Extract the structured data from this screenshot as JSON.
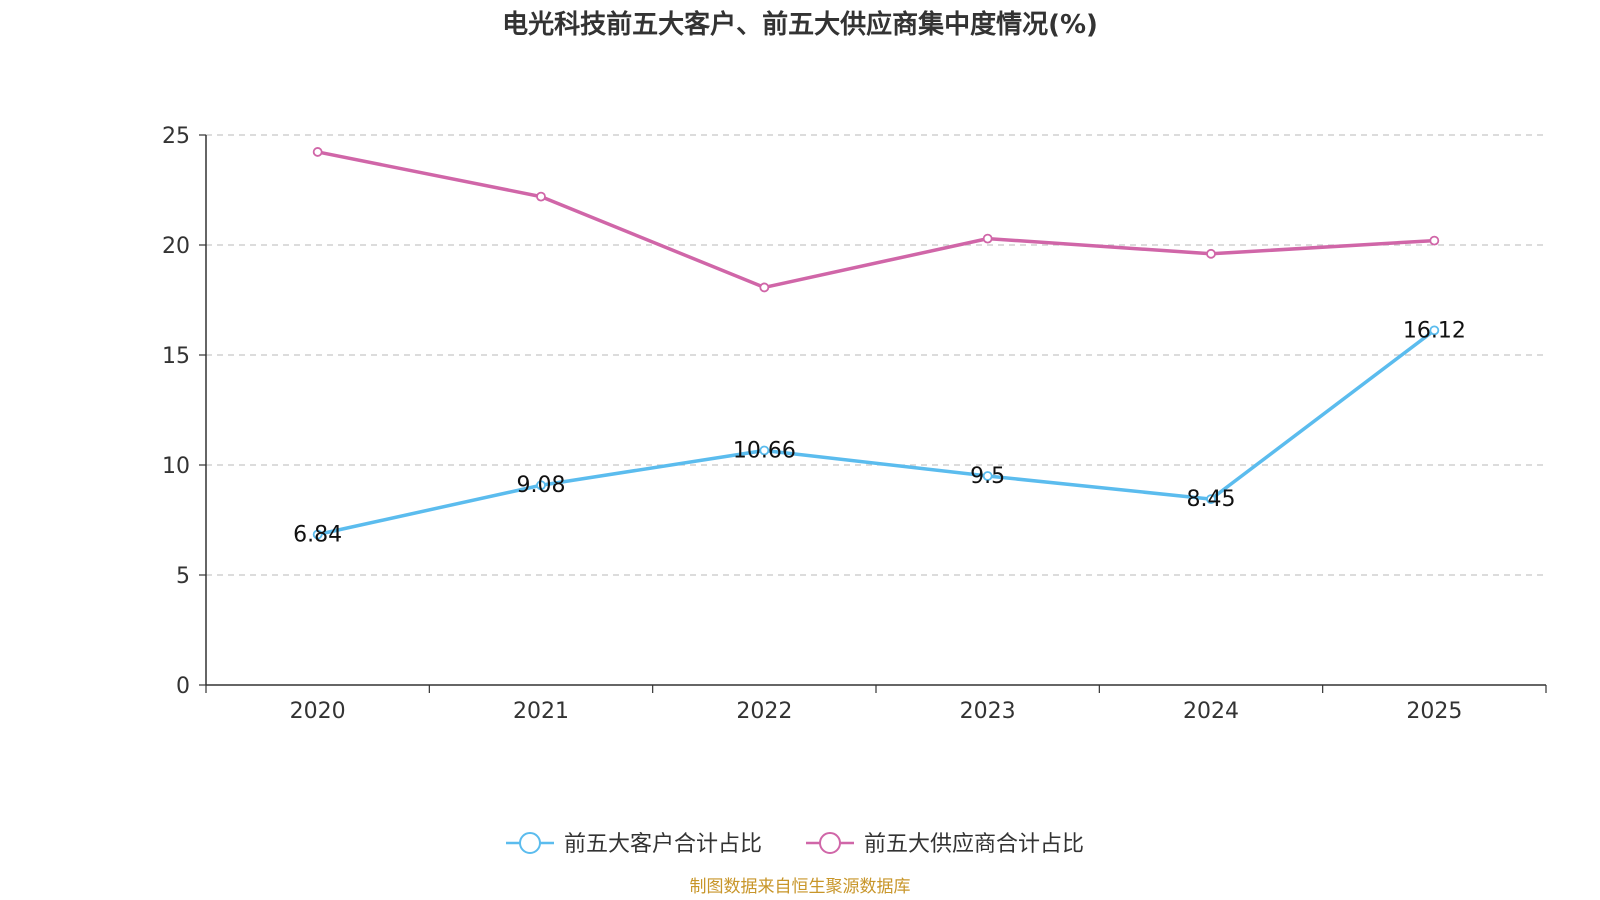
{
  "chart_data": {
    "type": "line",
    "title": "电光科技前五大客户、前五大供应商集中度情况(%)",
    "categories": [
      "2020",
      "2021",
      "2022",
      "2023",
      "2024",
      "2025"
    ],
    "ylim": [
      0,
      25
    ],
    "yticks": [
      0,
      5,
      10,
      15,
      20,
      25
    ],
    "grid": true,
    "legend_position": "bottom",
    "series": [
      {
        "name": "前五大客户合计占比",
        "color": "#5bbcee",
        "values": [
          6.84,
          9.08,
          10.66,
          9.5,
          8.45,
          16.12
        ],
        "labels": [
          "6.84",
          "9.08",
          "10.66",
          "9.5",
          "8.45",
          "16.12"
        ]
      },
      {
        "name": "前五大供应商合计占比",
        "color": "#d066a8",
        "values": [
          24.23,
          22.2,
          18.07,
          20.29,
          19.6,
          20.2
        ],
        "labels": null
      }
    ],
    "source": "制图数据来自恒生聚源数据库"
  }
}
